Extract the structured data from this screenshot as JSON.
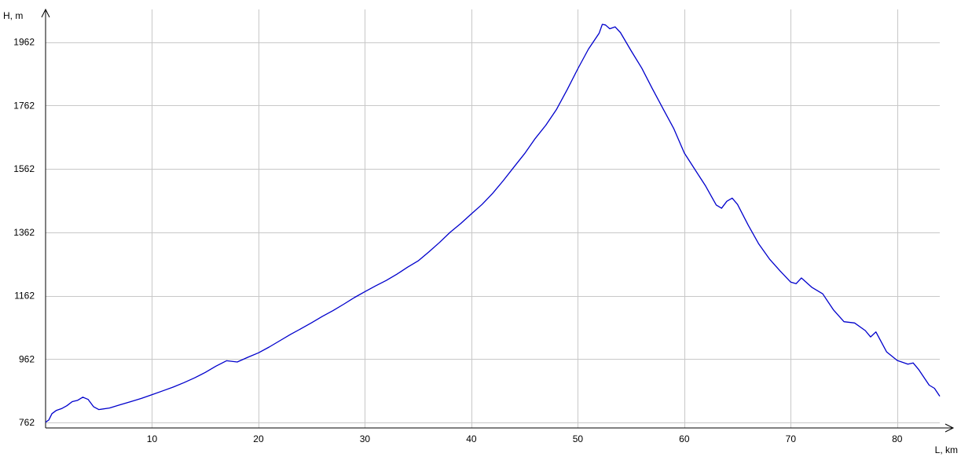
{
  "chart_data": {
    "type": "line",
    "title": "",
    "xlabel": "L, km",
    "ylabel": "H, m",
    "xlim": [
      0,
      84
    ],
    "ylim": [
      745,
      2065
    ],
    "x_ticks": [
      10,
      20,
      30,
      40,
      50,
      60,
      70,
      80
    ],
    "x_tick_labels": [
      "10",
      "20",
      "30",
      "40",
      "50",
      "60",
      "70",
      "80"
    ],
    "y_ticks": [
      762,
      962,
      1162,
      1362,
      1562,
      1762,
      1962
    ],
    "y_tick_labels": [
      "762",
      "962",
      "1162",
      "1362",
      "1562",
      "1762",
      "1962"
    ],
    "grid": true,
    "legend": "none",
    "colors": {
      "line": "#0000cc",
      "grid": "#c8c8c8",
      "axis": "#000000"
    },
    "series": [
      {
        "points": [
          [
            0.0,
            763
          ],
          [
            0.3,
            770
          ],
          [
            0.6,
            790
          ],
          [
            1.0,
            800
          ],
          [
            1.5,
            806
          ],
          [
            2.0,
            815
          ],
          [
            2.5,
            828
          ],
          [
            3.0,
            832
          ],
          [
            3.5,
            842
          ],
          [
            4.0,
            835
          ],
          [
            4.5,
            812
          ],
          [
            5.0,
            803
          ],
          [
            6.0,
            808
          ],
          [
            7.0,
            818
          ],
          [
            8.0,
            828
          ],
          [
            9.0,
            838
          ],
          [
            10.0,
            850
          ],
          [
            11.0,
            862
          ],
          [
            12.0,
            874
          ],
          [
            13.0,
            888
          ],
          [
            14.0,
            903
          ],
          [
            15.0,
            920
          ],
          [
            16.0,
            940
          ],
          [
            17.0,
            957
          ],
          [
            18.0,
            953
          ],
          [
            19.0,
            968
          ],
          [
            20.0,
            982
          ],
          [
            21.0,
            1000
          ],
          [
            22.0,
            1020
          ],
          [
            23.0,
            1040
          ],
          [
            24.0,
            1058
          ],
          [
            25.0,
            1077
          ],
          [
            26.0,
            1097
          ],
          [
            27.0,
            1115
          ],
          [
            28.0,
            1135
          ],
          [
            29.0,
            1156
          ],
          [
            30.0,
            1175
          ],
          [
            31.0,
            1193
          ],
          [
            32.0,
            1210
          ],
          [
            33.0,
            1230
          ],
          [
            34.0,
            1252
          ],
          [
            35.0,
            1272
          ],
          [
            36.0,
            1300
          ],
          [
            37.0,
            1330
          ],
          [
            38.0,
            1362
          ],
          [
            39.0,
            1390
          ],
          [
            40.0,
            1420
          ],
          [
            41.0,
            1450
          ],
          [
            42.0,
            1485
          ],
          [
            43.0,
            1525
          ],
          [
            44.0,
            1568
          ],
          [
            45.0,
            1610
          ],
          [
            46.0,
            1658
          ],
          [
            47.0,
            1700
          ],
          [
            48.0,
            1750
          ],
          [
            49.0,
            1812
          ],
          [
            50.0,
            1878
          ],
          [
            51.0,
            1940
          ],
          [
            52.0,
            1990
          ],
          [
            52.3,
            2018
          ],
          [
            52.6,
            2016
          ],
          [
            53.0,
            2004
          ],
          [
            53.5,
            2010
          ],
          [
            54.0,
            1992
          ],
          [
            55.0,
            1935
          ],
          [
            56.0,
            1880
          ],
          [
            57.0,
            1815
          ],
          [
            58.0,
            1752
          ],
          [
            59.0,
            1690
          ],
          [
            60.0,
            1612
          ],
          [
            61.0,
            1560
          ],
          [
            62.0,
            1508
          ],
          [
            63.0,
            1448
          ],
          [
            63.5,
            1438
          ],
          [
            64.0,
            1460
          ],
          [
            64.5,
            1470
          ],
          [
            65.0,
            1450
          ],
          [
            66.0,
            1385
          ],
          [
            67.0,
            1325
          ],
          [
            68.0,
            1278
          ],
          [
            69.0,
            1240
          ],
          [
            70.0,
            1205
          ],
          [
            70.5,
            1200
          ],
          [
            71.0,
            1218
          ],
          [
            72.0,
            1188
          ],
          [
            73.0,
            1168
          ],
          [
            74.0,
            1118
          ],
          [
            75.0,
            1080
          ],
          [
            76.0,
            1076
          ],
          [
            77.0,
            1052
          ],
          [
            77.5,
            1032
          ],
          [
            78.0,
            1048
          ],
          [
            79.0,
            985
          ],
          [
            80.0,
            958
          ],
          [
            81.0,
            946
          ],
          [
            81.5,
            950
          ],
          [
            82.0,
            930
          ],
          [
            83.0,
            880
          ],
          [
            83.5,
            870
          ],
          [
            84.0,
            845
          ]
        ]
      }
    ]
  }
}
